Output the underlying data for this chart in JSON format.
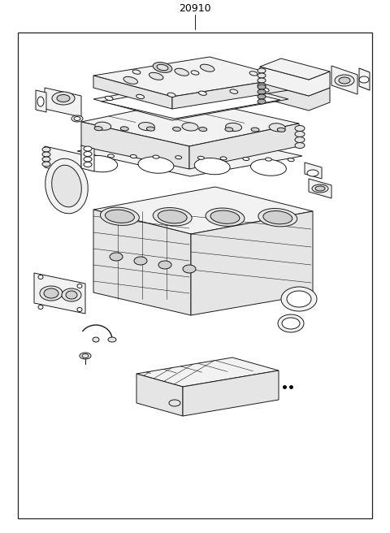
{
  "title": "20910",
  "bg_color": "#ffffff",
  "line_color": "#1a1a1a",
  "border_color": "#222222",
  "figsize": [
    4.8,
    6.56
  ],
  "dpi": 100,
  "lw": 0.7,
  "fill_light": "#f2f2f2",
  "fill_mid": "#e5e5e5",
  "fill_dark": "#d0d0d0",
  "fill_white": "#ffffff"
}
